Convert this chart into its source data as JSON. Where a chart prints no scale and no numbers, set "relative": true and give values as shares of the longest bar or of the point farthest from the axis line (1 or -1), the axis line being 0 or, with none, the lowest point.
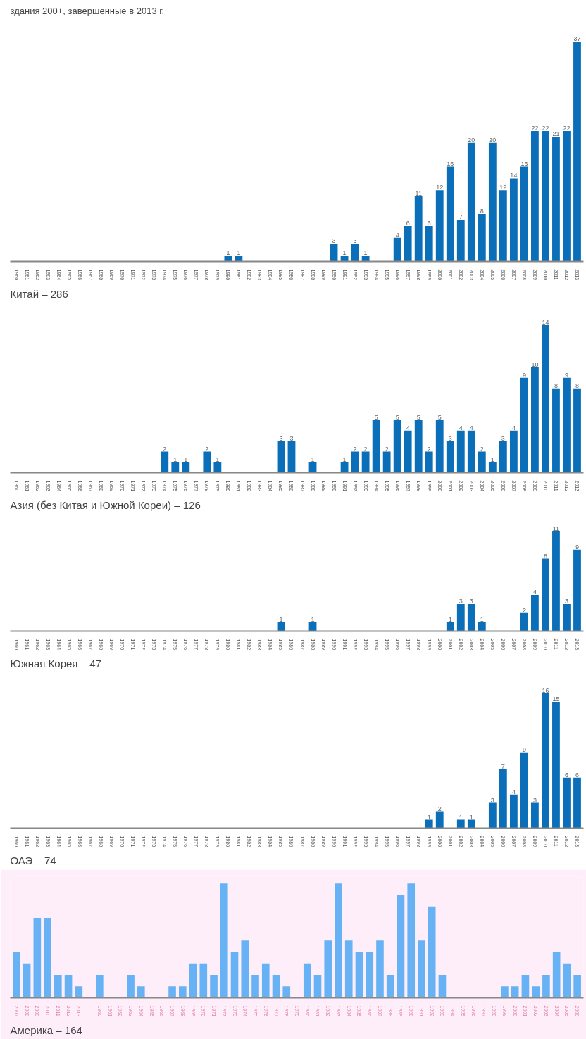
{
  "chart_data": [
    {
      "type": "bar",
      "subtitle": "здания 200+, завершенные в 2013 г.",
      "title": "Китай – 286",
      "color": "#0a6fb8",
      "data_labels": true,
      "categories": [
        "1960",
        "1961",
        "1962",
        "1963",
        "1964",
        "1965",
        "1966",
        "1967",
        "1968",
        "1969",
        "1970",
        "1971",
        "1972",
        "1973",
        "1974",
        "1975",
        "1976",
        "1977",
        "1978",
        "1979",
        "1980",
        "1981",
        "1982",
        "1983",
        "1984",
        "1985",
        "1986",
        "1987",
        "1988",
        "1989",
        "1990",
        "1991",
        "1992",
        "1993",
        "1994",
        "1995",
        "1996",
        "1997",
        "1998",
        "1999",
        "2000",
        "2001",
        "2002",
        "2003",
        "2004",
        "2005",
        "2006",
        "2007",
        "2008",
        "2009",
        "2010",
        "2011",
        "2012",
        "2013"
      ],
      "values": [
        null,
        null,
        null,
        null,
        null,
        null,
        null,
        null,
        null,
        null,
        null,
        null,
        null,
        null,
        null,
        null,
        null,
        null,
        null,
        null,
        1,
        1,
        null,
        null,
        null,
        null,
        null,
        null,
        null,
        null,
        3,
        1,
        3,
        1,
        null,
        null,
        4,
        6,
        11,
        6,
        12,
        16,
        7,
        20,
        8,
        20,
        12,
        14,
        16,
        22,
        22,
        21,
        22,
        37
      ]
    },
    {
      "type": "bar",
      "title": "Азия (без Китая и Южной Кореи) – 126",
      "color": "#0a6fb8",
      "data_labels": true,
      "categories": [
        "1960",
        "1961",
        "1962",
        "1963",
        "1964",
        "1965",
        "1966",
        "1967",
        "1968",
        "1969",
        "1970",
        "1971",
        "1972",
        "1973",
        "1974",
        "1975",
        "1976",
        "1977",
        "1978",
        "1979",
        "1980",
        "1981",
        "1982",
        "1983",
        "1984",
        "1985",
        "1986",
        "1987",
        "1988",
        "1989",
        "1990",
        "1991",
        "1992",
        "1993",
        "1994",
        "1995",
        "1996",
        "1997",
        "1998",
        "1999",
        "2000",
        "2001",
        "2002",
        "2003",
        "2004",
        "2005",
        "2006",
        "2007",
        "2008",
        "2009",
        "2010",
        "2011",
        "2012",
        "2013"
      ],
      "values": [
        null,
        null,
        null,
        null,
        null,
        null,
        null,
        null,
        null,
        null,
        null,
        null,
        null,
        null,
        2,
        1,
        1,
        null,
        2,
        1,
        null,
        null,
        null,
        null,
        null,
        3,
        3,
        null,
        1,
        null,
        null,
        1,
        2,
        2,
        5,
        2,
        5,
        4,
        5,
        2,
        5,
        3,
        4,
        4,
        2,
        1,
        3,
        4,
        9,
        10,
        14,
        8,
        9,
        8
      ]
    },
    {
      "type": "bar",
      "title": "Южная Корея – 47",
      "color": "#0a6fb8",
      "data_labels": true,
      "categories": [
        "1960",
        "1961",
        "1962",
        "1963",
        "1964",
        "1965",
        "1966",
        "1967",
        "1968",
        "1969",
        "1970",
        "1971",
        "1972",
        "1973",
        "1974",
        "1975",
        "1976",
        "1977",
        "1978",
        "1979",
        "1980",
        "1981",
        "1982",
        "1983",
        "1984",
        "1985",
        "1986",
        "1987",
        "1988",
        "1989",
        "1990",
        "1991",
        "1992",
        "1993",
        "1994",
        "1995",
        "1996",
        "1997",
        "1998",
        "1999",
        "2000",
        "2001",
        "2002",
        "2003",
        "2004",
        "2005",
        "2006",
        "2007",
        "2008",
        "2009",
        "2010",
        "2011",
        "2012",
        "2013"
      ],
      "values": [
        null,
        null,
        null,
        null,
        null,
        null,
        null,
        null,
        null,
        null,
        null,
        null,
        null,
        null,
        null,
        null,
        null,
        null,
        null,
        null,
        null,
        null,
        null,
        null,
        null,
        1,
        null,
        null,
        1,
        null,
        null,
        null,
        null,
        null,
        null,
        null,
        null,
        null,
        null,
        null,
        null,
        1,
        3,
        3,
        1,
        null,
        null,
        null,
        2,
        4,
        8,
        11,
        3,
        9
      ]
    },
    {
      "type": "bar",
      "title": "ОАЭ – 74",
      "color": "#0a6fb8",
      "data_labels": true,
      "categories": [
        "1960",
        "1961",
        "1962",
        "1963",
        "1964",
        "1965",
        "1966",
        "1967",
        "1968",
        "1969",
        "1970",
        "1971",
        "1972",
        "1973",
        "1974",
        "1975",
        "1976",
        "1977",
        "1978",
        "1979",
        "1980",
        "1981",
        "1982",
        "1983",
        "1984",
        "1985",
        "1986",
        "1987",
        "1988",
        "1989",
        "1990",
        "1991",
        "1992",
        "1993",
        "1994",
        "1995",
        "1996",
        "1997",
        "1998",
        "1999",
        "2000",
        "2001",
        "2002",
        "2003",
        "2004",
        "2005",
        "2006",
        "2007",
        "2008",
        "2009",
        "2010",
        "2011",
        "2012",
        "2013"
      ],
      "values": [
        null,
        null,
        null,
        null,
        null,
        null,
        null,
        null,
        null,
        null,
        null,
        null,
        null,
        null,
        null,
        null,
        null,
        null,
        null,
        null,
        null,
        null,
        null,
        null,
        null,
        null,
        null,
        null,
        null,
        null,
        null,
        null,
        null,
        null,
        null,
        null,
        null,
        null,
        null,
        1,
        2,
        null,
        1,
        1,
        null,
        3,
        7,
        4,
        9,
        3,
        16,
        15,
        6,
        6
      ]
    },
    {
      "type": "bar",
      "title": "Америка – 164",
      "color": "#66b2f5",
      "relative": true,
      "categories": [
        "2007",
        "2008",
        "2009",
        "2010",
        "2011",
        "2012",
        "2013",
        null,
        "1960",
        "1961",
        "1962",
        "1963",
        "1964",
        "1965",
        "1966",
        "1967",
        "1968",
        "1969",
        "1970",
        "1971",
        "1972",
        "1973",
        "1974",
        "1975",
        "1976",
        "1977",
        "1978",
        "1979",
        "1980",
        "1981",
        "1982",
        "1983",
        "1984",
        "1985",
        "1986",
        "1987",
        "1988",
        "1989",
        "1990",
        "1991",
        "1992",
        "1993",
        "1994",
        "1995",
        "1996",
        "1997",
        "1998",
        "1999",
        "2000",
        "2001",
        "2002",
        "2003",
        "2004",
        "2005",
        "2006"
      ],
      "values": [
        0.4,
        0.3,
        0.7,
        0.7,
        0.2,
        0.2,
        0.1,
        null,
        0.2,
        null,
        null,
        0.2,
        0.1,
        null,
        null,
        0.1,
        0.1,
        0.3,
        0.3,
        0.2,
        1,
        0.4,
        0.5,
        0.2,
        0.3,
        0.2,
        0.1,
        null,
        0.3,
        0.2,
        0.5,
        1,
        0.5,
        0.4,
        0.4,
        0.5,
        0.2,
        0.9,
        1,
        0.5,
        0.8,
        0.2,
        null,
        null,
        null,
        null,
        null,
        0.1,
        0.1,
        0.2,
        0.1,
        0.2,
        0.4,
        0.3,
        0.2
      ]
    }
  ]
}
